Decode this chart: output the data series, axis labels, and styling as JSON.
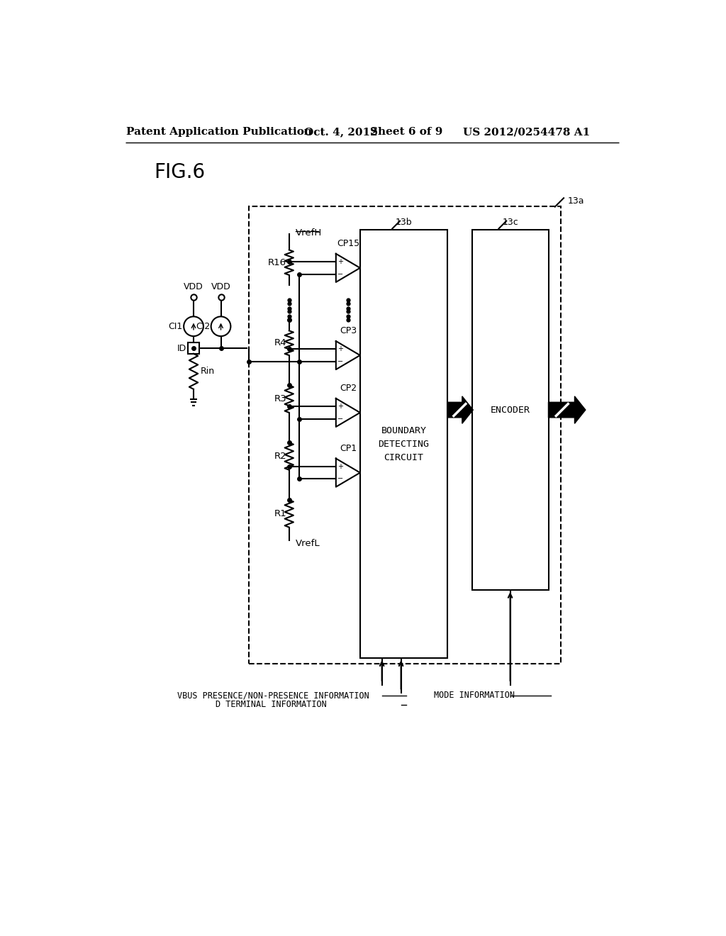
{
  "bg_color": "#ffffff",
  "line_color": "#000000",
  "header_left": "Patent Application Publication",
  "header_date": "Oct. 4, 2012",
  "header_sheet": "Sheet 6 of 9",
  "header_right": "US 2012/0254478 A1",
  "fig_label": "FIG.6",
  "label_VrefH": "VrefH",
  "label_VrefL": "VrefL",
  "label_VDD": "VDD",
  "label_CI1": "CI1",
  "label_CI2": "CI2",
  "label_ID": "ID",
  "label_Rin": "Rin",
  "label_R1": "R1",
  "label_R2": "R2",
  "label_R3": "R3",
  "label_R4": "R4",
  "label_R16": "R16",
  "label_CP1": "CP1",
  "label_CP2": "CP2",
  "label_CP3": "CP3",
  "label_CP15": "CP15",
  "label_13a": "13a",
  "label_13b": "13b",
  "label_13c": "13c",
  "label_boundary": "BOUNDARY\nDETECTING\nCIRCUIT",
  "label_encoder": "ENCODER",
  "label_vbus": "VBUS PRESENCE/NON-PRESENCE INFORMATION",
  "label_dterm": "D TERMINAL INFORMATION",
  "label_mode": "MODE INFORMATION"
}
